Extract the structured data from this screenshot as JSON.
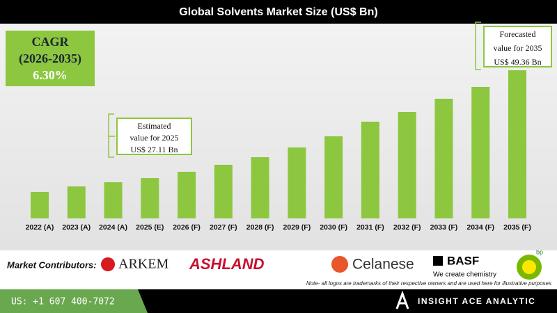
{
  "chart_data": {
    "type": "bar",
    "title": "Global Solvents Market Size (US$ Bn)",
    "categories": [
      "2022 (A)",
      "2023 (A)",
      "2024 (A)",
      "2025 (E)",
      "2026 (F)",
      "2027 (F)",
      "2028 (F)",
      "2029 (F)",
      "2030 (F)",
      "2031 (F)",
      "2032 (F)",
      "2033 (F)",
      "2034 (F)",
      "2035 (F)"
    ],
    "values": [
      24.25,
      25.39,
      26.25,
      27.11,
      28.41,
      29.85,
      31.42,
      33.43,
      35.73,
      38.75,
      40.75,
      43.48,
      45.92,
      49.36
    ],
    "color": "#8dc63f",
    "cagr": {
      "label": "CAGR",
      "period": "(2026-2035)",
      "value": "6.30%"
    },
    "annotations": [
      {
        "lines": [
          "Estimated",
          "value for 2025",
          "US$ 27.11 Bn"
        ]
      },
      {
        "lines": [
          "Forecasted",
          "value for 2035",
          "US$ 49.36 Bn"
        ]
      }
    ]
  },
  "footer": {
    "contributors_label": "Market Contributors:",
    "logos": [
      "ARKEM",
      "ASHLAND",
      "Celanese",
      "BASF",
      "We create chemistry",
      "bp"
    ],
    "note": "Note- all logos are trademarks of their respective owners and are used here for illustrative purposes",
    "phone": "US: +1 607 400-7072",
    "brand": "INSIGHT ACE ANALYTIC"
  }
}
